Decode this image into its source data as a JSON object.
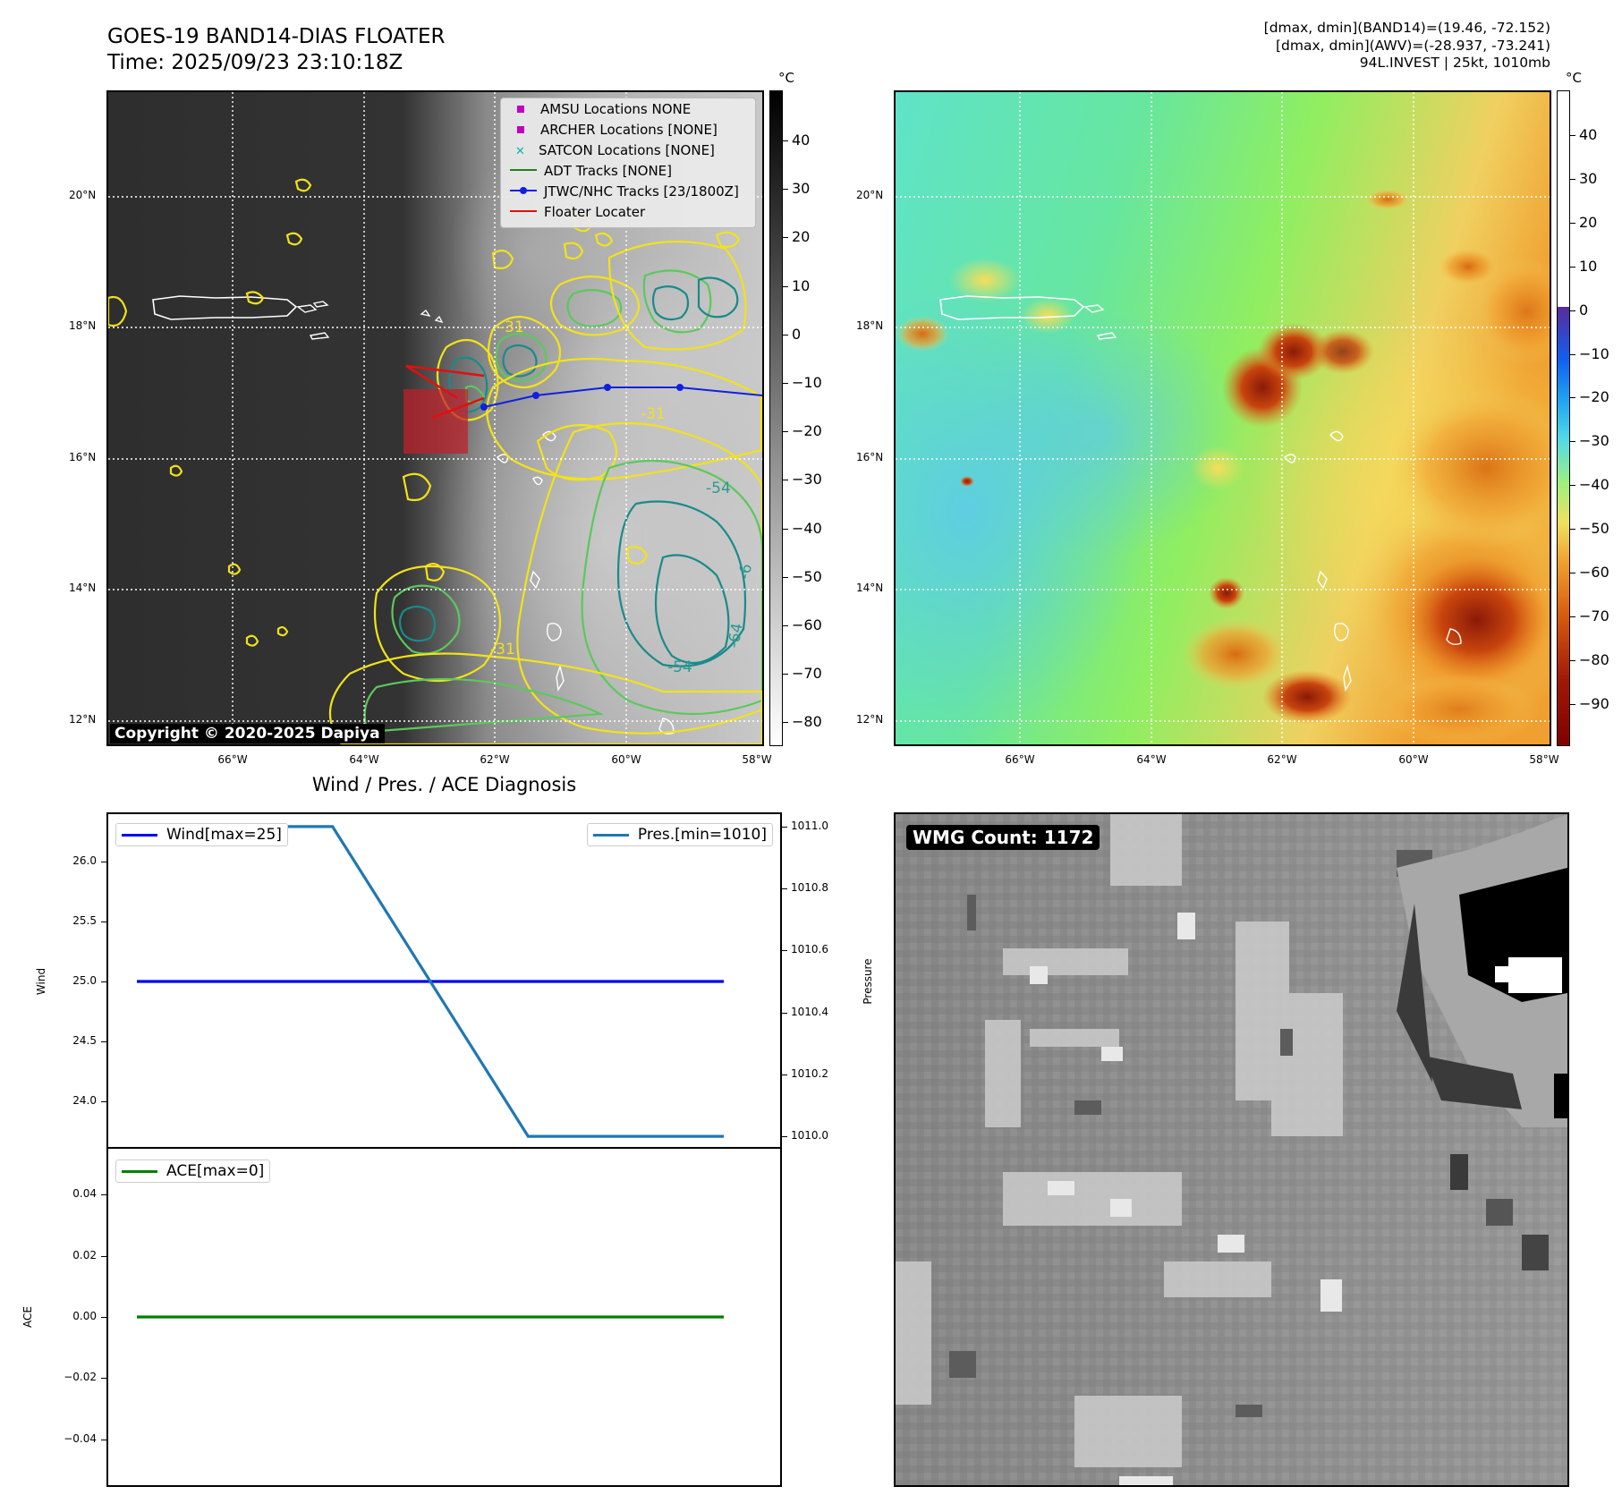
{
  "header": {
    "title_line1": "GOES-19 BAND14-DIAS FLOATER",
    "title_line2": "Time: 2025/09/23 23:10:18Z",
    "info_line1": "[dmax, dmin](BAND14)=(19.46, -72.152)",
    "info_line2": "[dmax, dmin](AWV)=(-28.937, -73.241)",
    "info_line3": "94L.INVEST | 25kt, 1010mb"
  },
  "map_axes": {
    "lat_labels": [
      "20°N",
      "18°N",
      "16°N",
      "14°N",
      "12°N"
    ],
    "lon_labels": [
      "66°W",
      "64°W",
      "62°W",
      "60°W",
      "58°W"
    ]
  },
  "left_map": {
    "unit": "°C",
    "colorbar_ticks": [
      "40",
      "30",
      "20",
      "10",
      "0",
      "−10",
      "−20",
      "−30",
      "−40",
      "−50",
      "−60",
      "−70",
      "−80"
    ],
    "contour_labels": [
      "-31",
      "-31",
      "-54",
      "-54",
      "-64",
      "-6",
      "-31"
    ],
    "copyright": "Copyright © 2020-2025 Dapiya",
    "legend": [
      {
        "label": "AMSU Locations NONE",
        "marker": "square",
        "color": "#c000c0"
      },
      {
        "label": "ARCHER Locations [NONE]",
        "marker": "square",
        "color": "#c000c0"
      },
      {
        "label": "SATCON Locations [NONE]",
        "marker": "x",
        "color": "#10b0b0"
      },
      {
        "label": "ADT Tracks [NONE]",
        "marker": "line",
        "color": "#208020"
      },
      {
        "label": "JTWC/NHC Tracks [23/1800Z]",
        "marker": "line-dot",
        "color": "#1020e0"
      },
      {
        "label": "Floater Locater",
        "marker": "line",
        "color": "#e01010"
      }
    ],
    "colors": {
      "track": "#1020e0",
      "floater": "#e01010",
      "contour_yellow": "#f2e21a",
      "contour_green": "#5cc85c",
      "contour_teal": "#1a8a8a"
    }
  },
  "right_map": {
    "unit": "°C",
    "colorbar_ticks": [
      "40",
      "30",
      "20",
      "10",
      "0",
      "−10",
      "−20",
      "−30",
      "−40",
      "−50",
      "−60",
      "−70",
      "−80",
      "−90"
    ]
  },
  "diagnosis": {
    "title": "Wind / Pres. / ACE Diagnosis",
    "wind_ylabel": "Wind",
    "pres_ylabel": "Pressure",
    "ace_ylabel": "ACE",
    "wind_legend": "Wind[max=25]",
    "pres_legend": "Pres.[min=1010]",
    "ace_legend": "ACE[max=0]",
    "wind_ticks": [
      "26.0",
      "25.5",
      "25.0",
      "24.5",
      "24.0"
    ],
    "pres_ticks": [
      "1011.0",
      "1010.8",
      "1010.6",
      "1010.4",
      "1010.2",
      "1010.0"
    ],
    "ace_ticks": [
      "0.04",
      "0.02",
      "0.00",
      "−0.02",
      "−0.04"
    ],
    "colors": {
      "wind": "#0000ee",
      "pres": "#1f77b4",
      "ace": "#008000"
    }
  },
  "wmg": {
    "label": "WMG Count: 1172"
  },
  "chart_data": [
    {
      "type": "line",
      "title": "Wind / Pres. / ACE Diagnosis",
      "x": [
        0,
        1,
        2,
        3
      ],
      "series": [
        {
          "name": "Wind[max=25]",
          "axis": "left",
          "values": [
            25,
            25,
            25,
            25
          ]
        },
        {
          "name": "Pres.[min=1010]",
          "axis": "right",
          "values": [
            1011,
            1011,
            1010,
            1010
          ]
        }
      ],
      "ylabel": "Wind",
      "ylim": [
        23.6,
        26.4
      ],
      "y2label": "Pressure",
      "y2lim": [
        1009.96,
        1011.04
      ]
    },
    {
      "type": "line",
      "x": [
        0,
        1,
        2,
        3
      ],
      "series": [
        {
          "name": "ACE[max=0]",
          "values": [
            0,
            0,
            0,
            0
          ]
        }
      ],
      "ylabel": "ACE",
      "ylim": [
        -0.055,
        0.055
      ]
    }
  ]
}
